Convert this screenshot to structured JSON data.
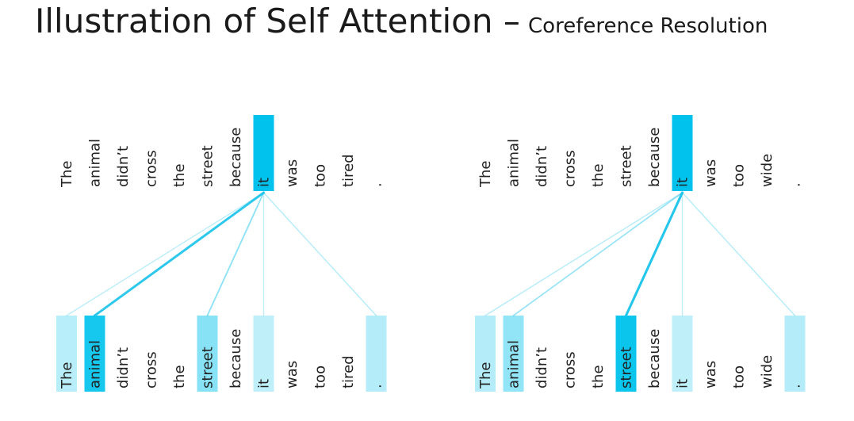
{
  "title": {
    "main": "Illustration of Self Attention –",
    "subtitle": "Coreference Resolution"
  },
  "colors": {
    "highlight": "#00c2ec",
    "line": "#1ac3ea"
  },
  "panels": [
    {
      "tokens": [
        "The",
        "animal",
        "didn’t",
        "cross",
        "the",
        "street",
        "because",
        "it",
        "was",
        "too",
        "tired",
        "."
      ],
      "query_index": 7,
      "attention": [
        0.18,
        0.9,
        0,
        0,
        0,
        0.4,
        0,
        0.15,
        0,
        0,
        0,
        0.2
      ]
    },
    {
      "tokens": [
        "The",
        "animal",
        "didn’t",
        "cross",
        "the",
        "street",
        "because",
        "it",
        "was",
        "too",
        "wide",
        "."
      ],
      "query_index": 7,
      "attention": [
        0.2,
        0.35,
        0,
        0,
        0,
        0.95,
        0,
        0.15,
        0,
        0,
        0,
        0.2
      ]
    }
  ]
}
